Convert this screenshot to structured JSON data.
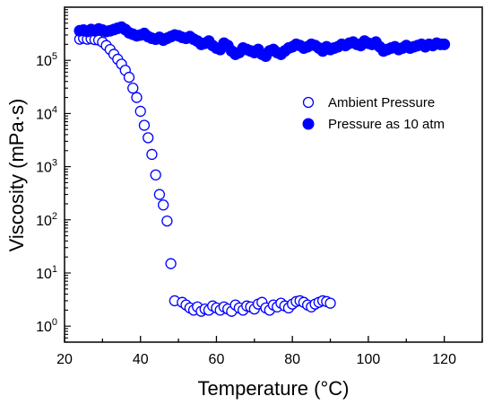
{
  "chart_data": {
    "type": "scatter",
    "xlabel": "Temperature (°C)",
    "ylabel": "Viscosity (mPa·s)",
    "xlim": [
      20,
      130
    ],
    "ylim": [
      0.5,
      1000000
    ],
    "yscale": "log",
    "xticks": [
      "20",
      "40",
      "60",
      "80",
      "100",
      "120"
    ],
    "yticks": [
      {
        "base": "10",
        "exp": "0",
        "value": 1
      },
      {
        "base": "10",
        "exp": "1",
        "value": 10
      },
      {
        "base": "10",
        "exp": "2",
        "value": 100
      },
      {
        "base": "10",
        "exp": "3",
        "value": 1000
      },
      {
        "base": "10",
        "exp": "4",
        "value": 10000
      },
      {
        "base": "10",
        "exp": "5",
        "value": 100000
      }
    ],
    "grid": false,
    "legend_position": "right",
    "colors": {
      "series": "#0000ff",
      "axis": "#000000"
    },
    "series": [
      {
        "name": "Ambient Pressure",
        "marker": "open-circle",
        "x": [
          24,
          25,
          26,
          27,
          28,
          29,
          30,
          31,
          32,
          33,
          34,
          35,
          36,
          37,
          38,
          39,
          40,
          41,
          42,
          43,
          44,
          45,
          46,
          47,
          48,
          49,
          51,
          52,
          53,
          54,
          55,
          56,
          57,
          58,
          59,
          60,
          61,
          62,
          63,
          64,
          65,
          66,
          67,
          68,
          69,
          70,
          71,
          72,
          73,
          74,
          75,
          76,
          77,
          78,
          79,
          80,
          81,
          82,
          83,
          84,
          85,
          86,
          87,
          88,
          89,
          90
        ],
        "y": [
          250000,
          260000,
          250000,
          255000,
          245000,
          240000,
          220000,
          190000,
          160000,
          130000,
          105000,
          85000,
          65000,
          48000,
          30000,
          20000,
          11000,
          6000,
          3500,
          1700,
          700,
          300,
          190,
          95,
          15,
          3.0,
          2.8,
          2.5,
          2.2,
          2.0,
          2.3,
          1.9,
          2.1,
          2.0,
          2.4,
          2.2,
          2.0,
          2.3,
          2.1,
          1.9,
          2.5,
          2.2,
          2.0,
          2.4,
          2.3,
          2.1,
          2.6,
          2.8,
          2.2,
          2.0,
          2.5,
          2.3,
          2.7,
          2.4,
          2.2,
          2.6,
          2.9,
          3.0,
          2.8,
          2.5,
          2.3,
          2.6,
          2.8,
          3.0,
          2.9,
          2.7
        ]
      },
      {
        "name": "Pressure as 10 atm",
        "marker": "filled-circle",
        "x": [
          24,
          25,
          26,
          27,
          28,
          29,
          30,
          31,
          32,
          33,
          34,
          35,
          36,
          37,
          38,
          39,
          40,
          41,
          42,
          43,
          44,
          45,
          46,
          47,
          48,
          49,
          50,
          51,
          52,
          53,
          54,
          55,
          56,
          57,
          58,
          59,
          60,
          61,
          62,
          63,
          64,
          65,
          66,
          67,
          68,
          69,
          70,
          71,
          72,
          73,
          74,
          75,
          76,
          77,
          78,
          79,
          80,
          81,
          82,
          83,
          84,
          85,
          86,
          87,
          88,
          89,
          90,
          91,
          92,
          93,
          94,
          95,
          96,
          97,
          98,
          99,
          100,
          101,
          102,
          103,
          104,
          105,
          106,
          107,
          108,
          109,
          110,
          111,
          112,
          113,
          114,
          115,
          116,
          117,
          118,
          119,
          120
        ],
        "y": [
          360000,
          370000,
          350000,
          380000,
          360000,
          390000,
          370000,
          350000,
          360000,
          380000,
          400000,
          420000,
          380000,
          330000,
          310000,
          290000,
          300000,
          320000,
          280000,
          260000,
          250000,
          270000,
          240000,
          260000,
          280000,
          300000,
          290000,
          270000,
          260000,
          280000,
          250000,
          230000,
          200000,
          210000,
          230000,
          190000,
          170000,
          160000,
          210000,
          190000,
          150000,
          130000,
          140000,
          170000,
          160000,
          150000,
          140000,
          160000,
          130000,
          120000,
          150000,
          160000,
          140000,
          130000,
          150000,
          170000,
          180000,
          200000,
          190000,
          170000,
          180000,
          200000,
          190000,
          170000,
          150000,
          180000,
          160000,
          170000,
          180000,
          200000,
          190000,
          210000,
          220000,
          200000,
          190000,
          230000,
          210000,
          200000,
          220000,
          180000,
          150000,
          160000,
          170000,
          180000,
          160000,
          170000,
          190000,
          170000,
          180000,
          190000,
          200000,
          180000,
          200000,
          190000,
          210000,
          200000,
          200000
        ]
      }
    ]
  }
}
